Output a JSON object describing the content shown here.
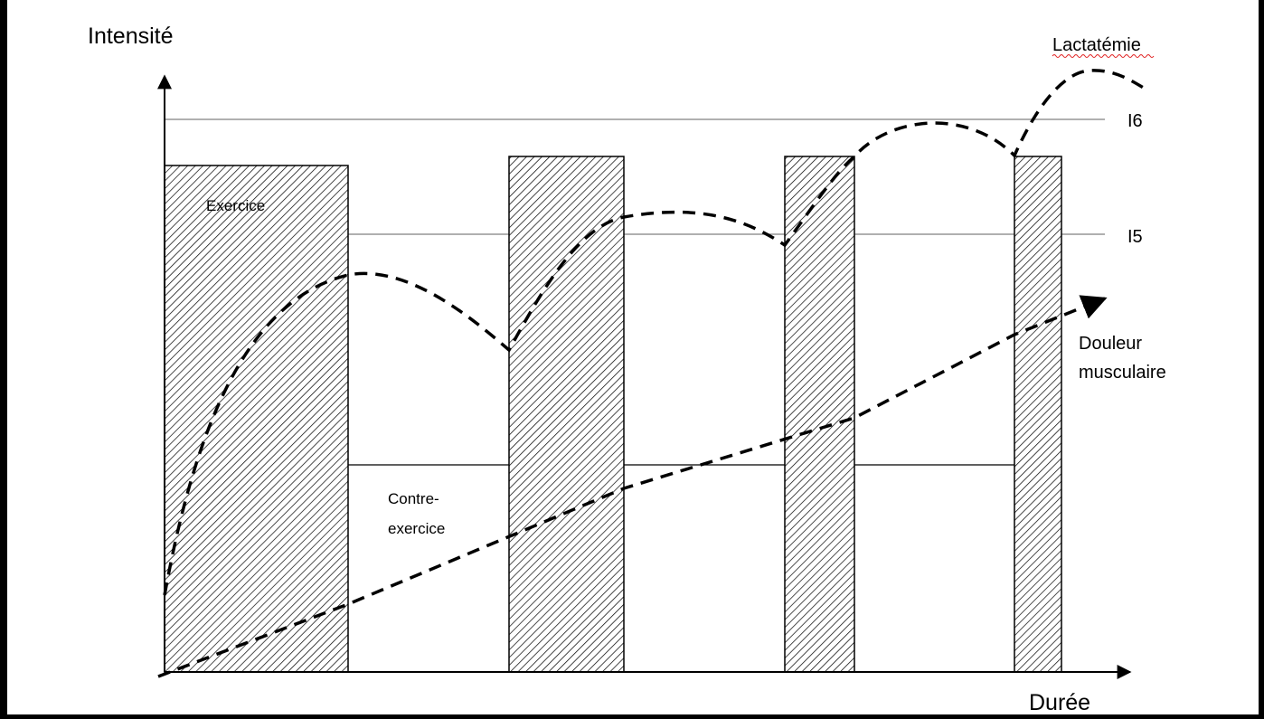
{
  "diagram": {
    "y_axis_label": "Intensité",
    "x_axis_label": "Durée",
    "reference_lines": [
      {
        "label": "I6"
      },
      {
        "label": "I5"
      }
    ],
    "bar_label": "Exercice",
    "recovery_label_line1": "Contre-",
    "recovery_label_line2": "exercice",
    "lactate_label": "Lactatémie",
    "pain_label_line1": "Douleur",
    "pain_label_line2": "musculaire",
    "colors": {
      "background": "#ffffff",
      "frame": "#000000",
      "bars_hatch": "#000000",
      "grid_line": "#808080",
      "curves": "#000000",
      "spellcheck_underline": "#e02020"
    }
  }
}
